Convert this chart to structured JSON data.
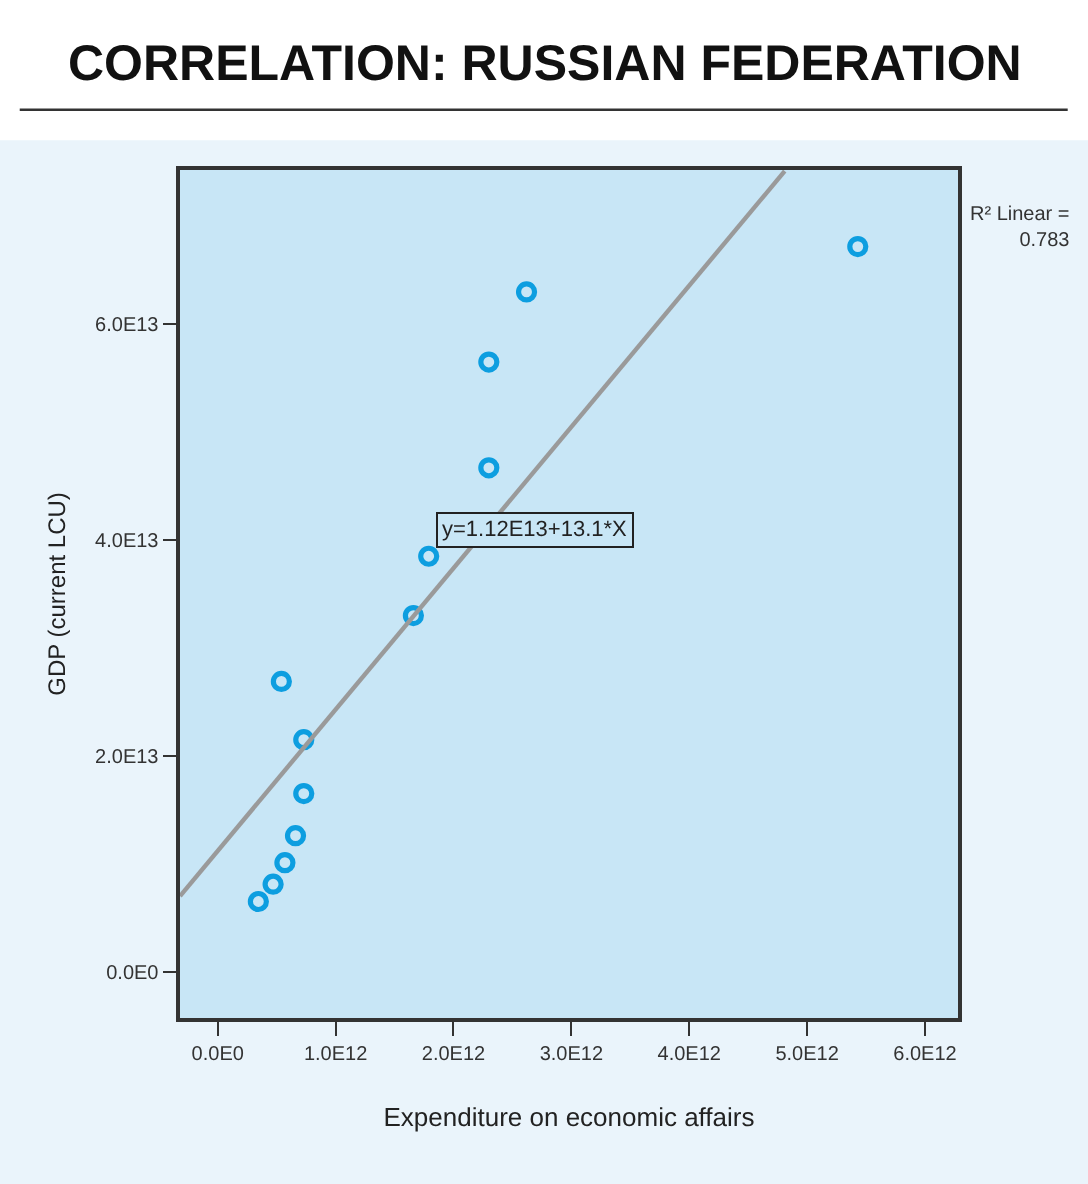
{
  "chart_data": {
    "type": "scatter",
    "title": "CORRELATION: RUSSIAN FEDERATION",
    "xlabel": "Expenditure on economic affairs",
    "ylabel": "GDP (current LCU)",
    "x": [
      345000000000.0,
      470000000000.0,
      570000000000.0,
      660000000000.0,
      730000000000.0,
      730000000000.0,
      540000000000.0,
      1660000000000.0,
      1790000000000.0,
      2300000000000.0,
      2300000000000.0,
      2620000000000.0,
      5430000000000.0
    ],
    "series": [
      {
        "color": "#0d9ee0",
        "marker": "circle",
        "values": [
          6500000000000.0,
          8100000000000.0,
          10100000000000.0,
          12600000000000.0,
          16500000000000.0,
          21500000000000.0,
          26900000000000.0,
          33000000000000.0,
          38500000000000.0,
          46700000000000.0,
          56500000000000.0,
          63000000000000.0,
          67200000000000.0
        ]
      },
      {
        "type": "line",
        "color": "#9a9a9a",
        "line_style": "solid",
        "marker": "none",
        "x": [
          -320000000000.0,
          4810000000000.0
        ],
        "values": [
          7000000000000.0,
          74200000000000.0
        ]
      }
    ],
    "xlim": [
      -320000000000.0,
      6280000000000.0
    ],
    "xticks": [
      {
        "value": 0,
        "label": "0.0E0"
      },
      {
        "value": 1000000000000.0,
        "label": "1.0E12"
      },
      {
        "value": 2000000000000.0,
        "label": "2.0E12"
      },
      {
        "value": 3000000000000.0,
        "label": "3.0E12"
      },
      {
        "value": 4000000000000.0,
        "label": "4.0E12"
      },
      {
        "value": 5000000000000.0,
        "label": "5.0E12"
      },
      {
        "value": 6000000000000.0,
        "label": "6.0E12"
      }
    ],
    "ylim": [
      -4300000000000.0,
      74300000000000.0
    ],
    "yticks": [
      {
        "value": 0,
        "label": "0.0E0"
      },
      {
        "value": 20000000000000.0,
        "label": "2.0E13"
      },
      {
        "value": 40000000000000.0,
        "label": "4.0E13"
      },
      {
        "value": 60000000000000.0,
        "label": "6.0E13"
      }
    ],
    "grid": false,
    "annotations": [
      "y=1.12E13+13.1*X",
      "R² Linear =\n0.783"
    ]
  }
}
